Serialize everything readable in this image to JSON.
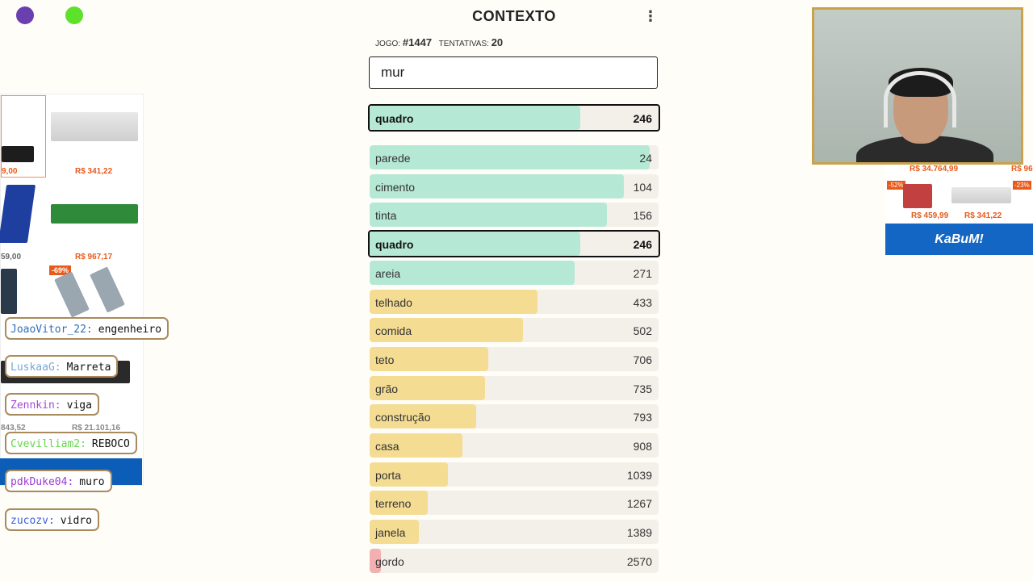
{
  "game": {
    "title": "CONTEXTO",
    "menu_icon": "⋮",
    "game_label": "JOGO:",
    "game_number": "#1447",
    "attempts_label": "TENTATIVAS:",
    "attempts": "20",
    "input_value": "mur",
    "last_guess": {
      "word": "quadro",
      "rank": "246"
    },
    "guesses": [
      {
        "word": "parede",
        "rank": "24",
        "fill": 0.97,
        "color": "#b6e8d6"
      },
      {
        "word": "cimento",
        "rank": "104",
        "fill": 0.88,
        "color": "#b6e8d6"
      },
      {
        "word": "tinta",
        "rank": "156",
        "fill": 0.82,
        "color": "#b6e8d6"
      },
      {
        "word": "quadro",
        "rank": "246",
        "fill": 0.73,
        "color": "#b6e8d6",
        "active": true
      },
      {
        "word": "areia",
        "rank": "271",
        "fill": 0.71,
        "color": "#b6e8d6"
      },
      {
        "word": "telhado",
        "rank": "433",
        "fill": 0.58,
        "color": "#f4dc93"
      },
      {
        "word": "comida",
        "rank": "502",
        "fill": 0.53,
        "color": "#f4dc93"
      },
      {
        "word": "teto",
        "rank": "706",
        "fill": 0.41,
        "color": "#f4dc93"
      },
      {
        "word": "grão",
        "rank": "735",
        "fill": 0.4,
        "color": "#f4dc93"
      },
      {
        "word": "construção",
        "rank": "793",
        "fill": 0.37,
        "color": "#f4dc93"
      },
      {
        "word": "casa",
        "rank": "908",
        "fill": 0.32,
        "color": "#f4dc93"
      },
      {
        "word": "porta",
        "rank": "1039",
        "fill": 0.27,
        "color": "#f4dc93"
      },
      {
        "word": "terreno",
        "rank": "1267",
        "fill": 0.2,
        "color": "#f4dc93"
      },
      {
        "word": "janela",
        "rank": "1389",
        "fill": 0.17,
        "color": "#f4dc93"
      },
      {
        "word": "gordo",
        "rank": "2570",
        "fill": 0.04,
        "color": "#f2b0b0"
      }
    ]
  },
  "chat": [
    {
      "user": "JoaoVitor_22:",
      "msg": "engenheiro",
      "color": "#2f6fb8"
    },
    {
      "user": "LuskaaG:",
      "msg": "Marreta",
      "color": "#7aa7d6"
    },
    {
      "user": "Zennkin:",
      "msg": "viga",
      "color": "#a34ad6"
    },
    {
      "user": "Cvevilliam2:",
      "msg": "REBOCO",
      "color": "#63d64a"
    },
    {
      "user": "pdkDuke04:",
      "msg": "muro",
      "color": "#9a3ad6"
    },
    {
      "user": "zucozv:",
      "msg": "vidro",
      "color": "#3a5fd6"
    }
  ],
  "ads_left": {
    "prices": [
      "R$ 341,22",
      "R$ 967,17",
      "9,00",
      "59,00"
    ],
    "discount": "-69%",
    "prices_bottom": [
      "843,52",
      "R$ 21.101,16"
    ]
  },
  "ads_right": {
    "prices": [
      "R$ 34.764,99",
      "R$ 96",
      "R$ 459,99",
      "R$ 341,22"
    ],
    "discounts": [
      "-52%",
      "-23%"
    ],
    "brand": "KaBuM!"
  }
}
